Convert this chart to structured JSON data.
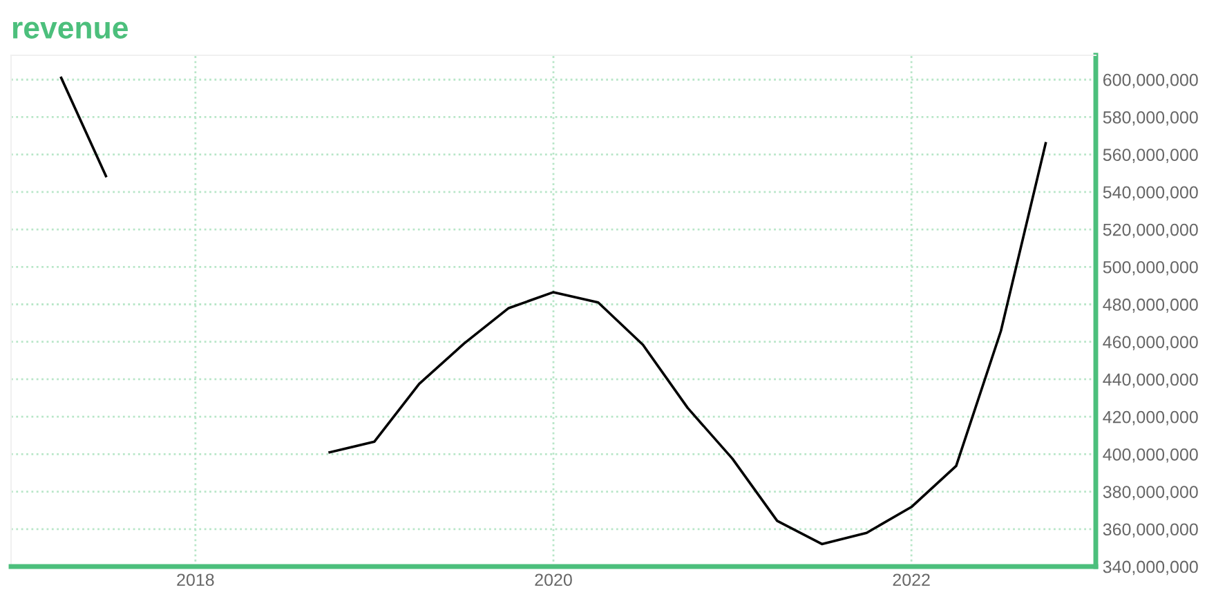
{
  "chart_data": {
    "type": "line",
    "title": "revenue",
    "x": [
      2017.25,
      2017.5,
      2017.75,
      2018.0,
      2018.25,
      2018.5,
      2018.75,
      2019.0,
      2019.25,
      2019.5,
      2019.75,
      2020.0,
      2020.25,
      2020.5,
      2020.75,
      2021.0,
      2021.25,
      2021.5,
      2021.75,
      2022.0,
      2022.25,
      2022.5,
      2022.75
    ],
    "series": [
      {
        "color": "#000000",
        "values": [
          601000000,
          548500000,
          null,
          null,
          null,
          null,
          401000000,
          406700000,
          437500000,
          459000000,
          478000000,
          486500000,
          481000000,
          458400000,
          424700000,
          397600000,
          364400000,
          352000000,
          358000000,
          371800000,
          393700000,
          465800000,
          566000000
        ]
      }
    ],
    "xlim": [
      2016.97,
      2023.03
    ],
    "xticks": [
      2018,
      2020,
      2022
    ],
    "ylim": [
      340000000,
      613000000
    ],
    "yticks": [
      {
        "value": 340000000,
        "label": "340,000,000"
      },
      {
        "value": 360000000,
        "label": "360,000,000"
      },
      {
        "value": 380000000,
        "label": "380,000,000"
      },
      {
        "value": 400000000,
        "label": "400,000,000"
      },
      {
        "value": 420000000,
        "label": "420,000,000"
      },
      {
        "value": 440000000,
        "label": "440,000,000"
      },
      {
        "value": 460000000,
        "label": "460,000,000"
      },
      {
        "value": 480000000,
        "label": "480,000,000"
      },
      {
        "value": 500000000,
        "label": "500,000,000"
      },
      {
        "value": 520000000,
        "label": "520,000,000"
      },
      {
        "value": 540000000,
        "label": "540,000,000"
      },
      {
        "value": 560000000,
        "label": "560,000,000"
      },
      {
        "value": 580000000,
        "label": "580,000,000"
      },
      {
        "value": 600000000,
        "label": "600,000,000"
      }
    ],
    "grid": true,
    "marker": "none",
    "line_style": "solid"
  }
}
